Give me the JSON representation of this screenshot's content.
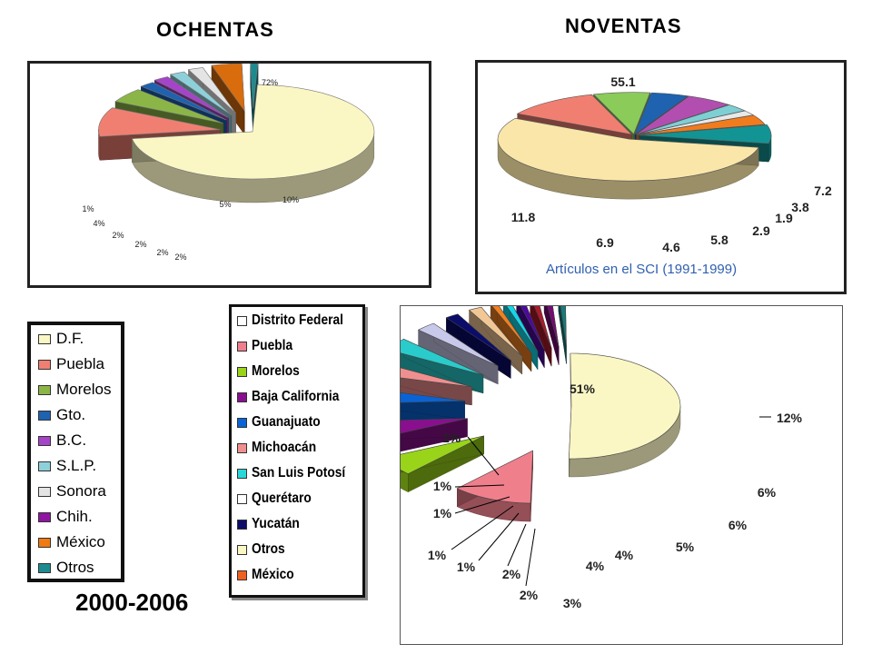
{
  "headings": {
    "ochentas": "OCHENTAS",
    "noventas": "NOVENTAS",
    "period": "2000-2006"
  },
  "chart_data": [
    {
      "id": "ochentas",
      "type": "pie",
      "title": "OCHENTAS",
      "series": [
        {
          "values": [
            72,
            10,
            5,
            2,
            2,
            2,
            2,
            4,
            1
          ]
        }
      ],
      "labels": [
        "72%",
        "10%",
        "5%",
        "2%",
        "2%",
        "2%",
        "2%",
        "4%",
        "1%"
      ],
      "colors": [
        "#FAF7C4",
        "#F07F72",
        "#8BB647",
        "#1E62B0",
        "#A544C8",
        "#8ED0DA",
        "#E4E4E4",
        "#D96C0C",
        "#1C8B90"
      ]
    },
    {
      "id": "noventas",
      "type": "pie",
      "title": "NOVENTAS",
      "caption": "Artículos en el SCI (1991-1999)",
      "series": [
        {
          "values": [
            55.1,
            11.8,
            6.9,
            4.6,
            5.8,
            2.9,
            1.9,
            3.8,
            7.2
          ]
        }
      ],
      "labels": [
        "55.1",
        "11.8",
        "6.9",
        "4.6",
        "5.8",
        "2.9",
        "1.9",
        "3.8",
        "7.2"
      ],
      "colors": [
        "#FAE6A8",
        "#F07F72",
        "#8BCB5A",
        "#1E62B0",
        "#B24EB0",
        "#7DCFD4",
        "#E8E8E8",
        "#F07C1E",
        "#139494"
      ]
    },
    {
      "id": "2000-2006",
      "type": "pie",
      "title": "2000-2006",
      "series": [
        {
          "values": [
            51,
            12,
            6,
            6,
            5,
            4,
            4,
            3,
            2,
            2,
            1,
            1,
            1,
            1,
            1,
            1
          ]
        }
      ],
      "labels": [
        "51%",
        "12%",
        "6%",
        "6%",
        "5%",
        "4%",
        "4%",
        "3%",
        "2%",
        "2%",
        "1%",
        "1%",
        "1%",
        "1%",
        "1%",
        "1%"
      ],
      "colors": [
        "#FAF7C4",
        "#F07F8C",
        "#99D41A",
        "#8A0F8E",
        "#0A63D6",
        "#F08F8F",
        "#2ACBCB",
        "#C8C8EA",
        "#0C0C6A",
        "#F2C796",
        "#F08020",
        "#13D7E7",
        "#4C0A9C",
        "#AA1A2A",
        "#730C73",
        "#1A7A7A"
      ]
    }
  ],
  "legend_a": {
    "items": [
      {
        "label": "D.F.",
        "color": "#FAF7C4"
      },
      {
        "label": "Puebla",
        "color": "#F07F72"
      },
      {
        "label": "Morelos",
        "color": "#8BB647"
      },
      {
        "label": "Gto.",
        "color": "#1E62B0"
      },
      {
        "label": "B.C.",
        "color": "#A544C8"
      },
      {
        "label": "S.L.P.",
        "color": "#8ED0DA"
      },
      {
        "label": "Sonora",
        "color": "#E4E4E4"
      },
      {
        "label": "Chih.",
        "color": "#8E16A0"
      },
      {
        "label": "México",
        "color": "#F07A10"
      },
      {
        "label": "Otros",
        "color": "#1C8B90"
      }
    ]
  },
  "legend_b": {
    "items": [
      {
        "label": "Distrito Federal",
        "color": "#FFFFFF"
      },
      {
        "label": "Puebla",
        "color": "#F07F8C"
      },
      {
        "label": "Morelos",
        "color": "#99D41A"
      },
      {
        "label": "Baja California",
        "color": "#8A0F8E"
      },
      {
        "label": "Guanajuato",
        "color": "#0A63D6"
      },
      {
        "label": "Michoacán",
        "color": "#F08F8F"
      },
      {
        "label": "San Luis Potosí",
        "color": "#2AD7D7"
      },
      {
        "label": "Querétaro",
        "color": "#FFFFFF"
      },
      {
        "label": "Yucatán",
        "color": "#0C0C6A"
      },
      {
        "label": "Otros",
        "color": "#FAF7C4"
      },
      {
        "label": "México",
        "color": "#F06020"
      }
    ]
  }
}
